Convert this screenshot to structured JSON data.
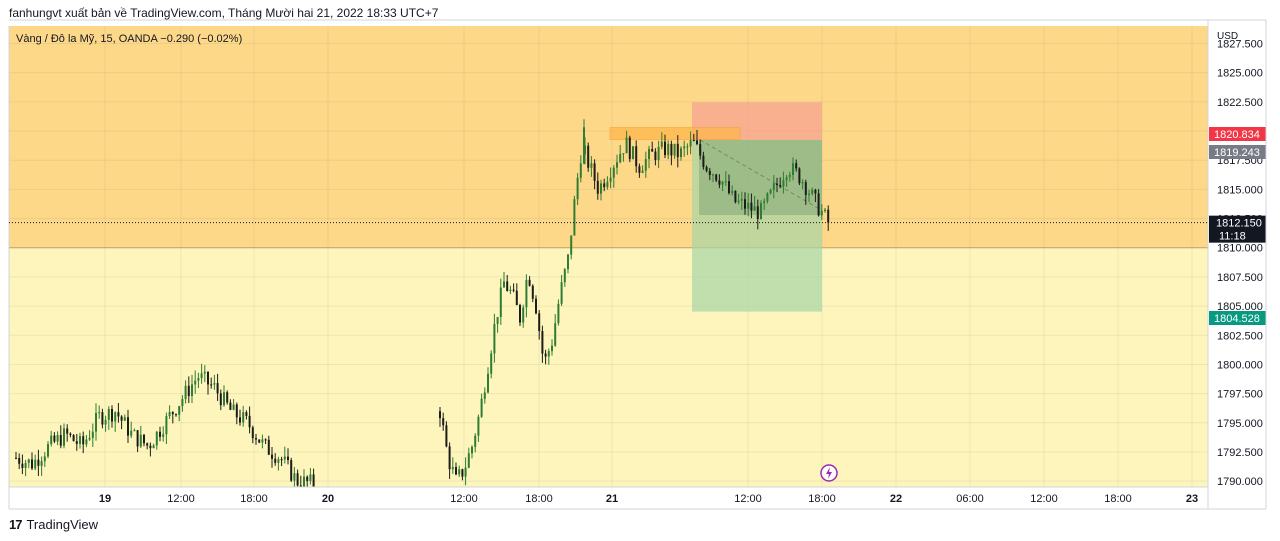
{
  "header": {
    "publisher_line": "fanhungvt xuất bản về TradingView.com, Tháng Mười hai 21, 2022 18:33 UTC+7"
  },
  "footer": {
    "logo_mark": "17",
    "logo_text": "TradingView"
  },
  "colors": {
    "zone_upper": "#fdd888",
    "zone_lower": "#fdf5bb",
    "candle": "#1b1b1b",
    "candle_bull": "#2e7d32",
    "target_zone": "#a5d6a7",
    "stop_zone": "#f6a392",
    "highlight_zone": "#ffb74d",
    "price_red": "#f23645",
    "price_gray": "#787b86",
    "price_black": "#131722",
    "price_green": "#089981"
  },
  "chart_data": {
    "type": "candlestick",
    "title": "Vàng / Đô la Mỹ, 15, OANDA",
    "change_text": "−0.290 (−0.02%)",
    "symbol": "Vàng / Đô la Mỹ",
    "interval": "15",
    "source": "OANDA",
    "currency_label": "USD",
    "y_ticks": [
      "1827.500",
      "1825.000",
      "1822.500",
      "1820.000",
      "1817.500",
      "1815.000",
      "1812.500",
      "1810.000",
      "1807.500",
      "1805.000",
      "1802.500",
      "1800.000",
      "1797.500",
      "1795.000",
      "1792.500",
      "1790.000"
    ],
    "x_ticks": [
      {
        "label": "19",
        "bold": true
      },
      {
        "label": "12:00",
        "bold": false
      },
      {
        "label": "18:00",
        "bold": false
      },
      {
        "label": "20",
        "bold": true
      },
      {
        "label": "12:00",
        "bold": false
      },
      {
        "label": "18:00",
        "bold": false
      },
      {
        "label": "21",
        "bold": true
      },
      {
        "label": "12:00",
        "bold": false
      },
      {
        "label": "18:00",
        "bold": false
      },
      {
        "label": "22",
        "bold": true
      },
      {
        "label": "06:00",
        "bold": false
      },
      {
        "label": "12:00",
        "bold": false
      },
      {
        "label": "18:00",
        "bold": false
      },
      {
        "label": "23",
        "bold": true
      }
    ],
    "zones": {
      "upper_zone": [
        1810.0,
        1830.0
      ],
      "lower_zone": [
        1789.5,
        1810.0
      ]
    },
    "position": {
      "type": "short",
      "entry": 1819.243,
      "stop": 1820.834,
      "target": 1804.528
    },
    "price_labels": {
      "stop": "1820.834",
      "entry": "1819.243",
      "current": "1812.150",
      "countdown": "11:18",
      "target": "1804.528"
    },
    "current_price": 1812.15,
    "series": [
      {
        "segment": "Dec 19",
        "points": [
          [
            0,
            1792
          ],
          [
            3,
            1791.5
          ],
          [
            6,
            1793
          ],
          [
            9,
            1794
          ],
          [
            12,
            1793
          ],
          [
            15,
            1795.5
          ],
          [
            18,
            1796
          ],
          [
            21,
            1794
          ],
          [
            24,
            1793
          ],
          [
            27,
            1795
          ],
          [
            30,
            1797
          ],
          [
            33,
            1799
          ],
          [
            36,
            1798
          ],
          [
            39,
            1796
          ],
          [
            42,
            1795
          ],
          [
            45,
            1793
          ],
          [
            48,
            1792
          ],
          [
            51,
            1790
          ],
          [
            54,
            1789.8
          ]
        ]
      },
      {
        "segment": "Dec 20",
        "points": [
          [
            0,
            1796
          ],
          [
            3,
            1792
          ],
          [
            6,
            1790
          ],
          [
            9,
            1791
          ],
          [
            12,
            1793
          ],
          [
            15,
            1796
          ],
          [
            18,
            1800
          ],
          [
            21,
            1804
          ],
          [
            24,
            1807
          ],
          [
            27,
            1806
          ],
          [
            30,
            1804
          ],
          [
            33,
            1808
          ],
          [
            36,
            1805
          ],
          [
            39,
            1800
          ],
          [
            42,
            1802
          ],
          [
            45,
            1806
          ],
          [
            48,
            1809
          ],
          [
            51,
            1815
          ],
          [
            54,
            1820
          ]
        ]
      },
      {
        "segment": "Dec 21",
        "points": [
          [
            0,
            1818
          ],
          [
            3,
            1815
          ],
          [
            6,
            1817
          ],
          [
            9,
            1819
          ],
          [
            12,
            1817
          ],
          [
            15,
            1818
          ],
          [
            18,
            1818.5
          ],
          [
            21,
            1818
          ],
          [
            24,
            1819
          ],
          [
            27,
            1817
          ],
          [
            30,
            1816
          ],
          [
            33,
            1814
          ],
          [
            36,
            1813.5
          ],
          [
            39,
            1813
          ],
          [
            42,
            1815
          ],
          [
            45,
            1817
          ],
          [
            48,
            1816
          ],
          [
            51,
            1814
          ],
          [
            54,
            1812.15
          ]
        ]
      }
    ]
  }
}
